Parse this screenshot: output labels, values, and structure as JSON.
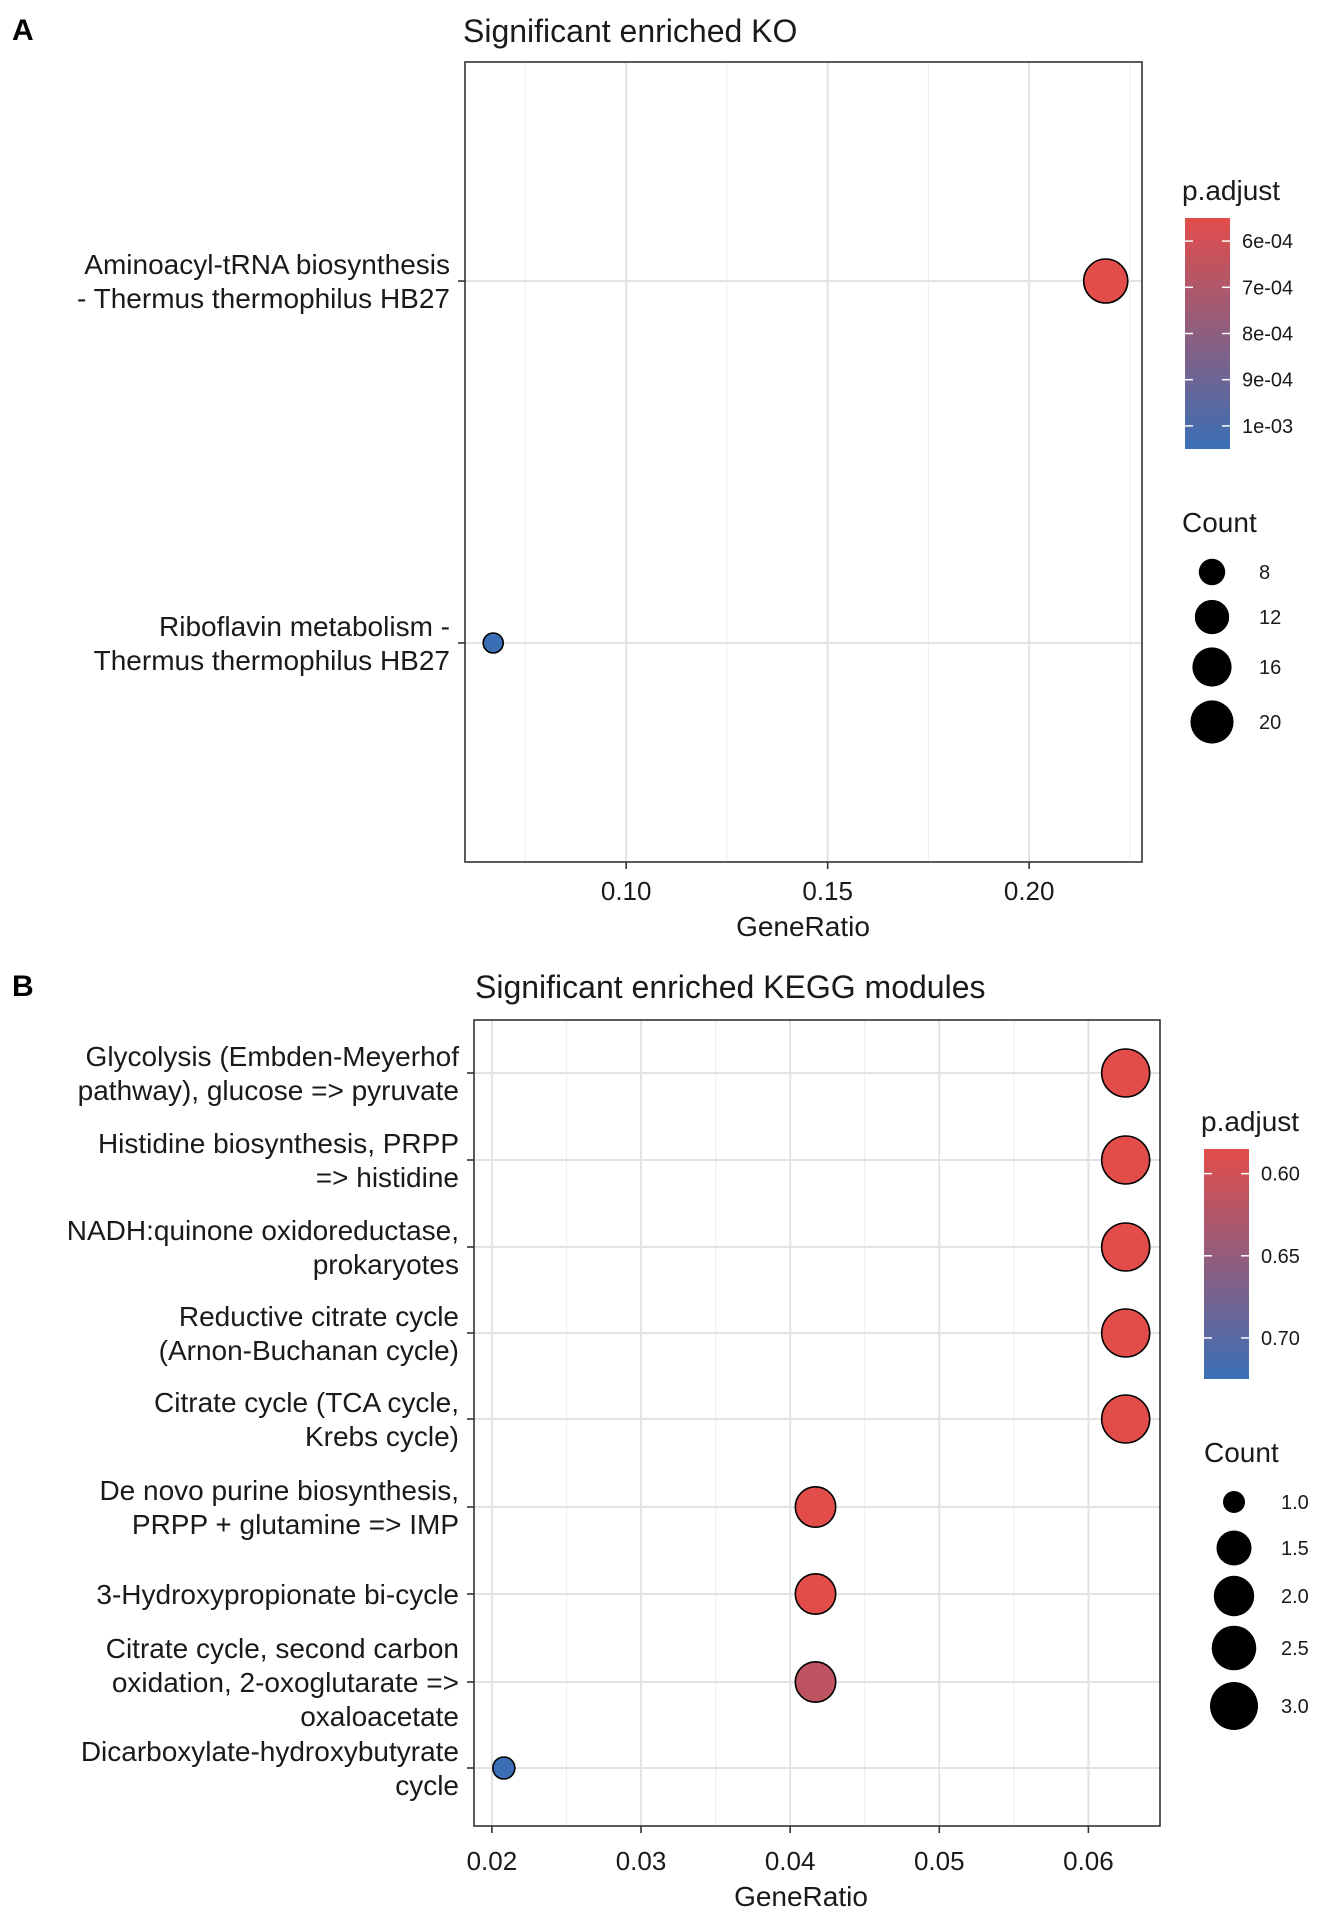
{
  "panels": [
    {
      "letter": "A",
      "chart_data": {
        "type": "scatter",
        "title": "Significant enriched KO",
        "xlabel": "GeneRatio",
        "ylabel": "",
        "xlim": [
          0.06,
          0.228
        ],
        "xticks": [
          0.1,
          0.15,
          0.2
        ],
        "xtick_labels": [
          "0.10",
          "0.15",
          "0.20"
        ],
        "grid": true,
        "categories": [
          [
            "Aminoacyl-tRNA biosynthesis",
            "- Thermus thermophilus HB27"
          ],
          [
            "Riboflavin metabolism -",
            "Thermus thermophilus HB27"
          ]
        ],
        "points": [
          {
            "category": 0,
            "x": 0.219,
            "count": 21,
            "p_adjust": 0.00055
          },
          {
            "category": 1,
            "x": 0.067,
            "count": 7,
            "p_adjust": 0.00105
          }
        ],
        "color_legend": {
          "title": "p.adjust",
          "low_color": "#e24d4a",
          "high_color": "#3a6fb5",
          "range": [
            0.00055,
            0.00105
          ],
          "ticks": [
            0.0006,
            0.0007,
            0.0008,
            0.0009,
            0.001
          ],
          "tick_labels": [
            "6e-04",
            "7e-04",
            "8e-04",
            "9e-04",
            "1e-03"
          ]
        },
        "size_legend": {
          "title": "Count",
          "values": [
            8,
            12,
            16,
            20
          ],
          "labels": [
            "8",
            "12",
            "16",
            "20"
          ],
          "min": 7,
          "max": 21
        }
      }
    },
    {
      "letter": "B",
      "chart_data": {
        "type": "scatter",
        "title": "Significant enriched KEGG modules",
        "xlabel": "GeneRatio",
        "ylabel": "",
        "xlim": [
          0.0188,
          0.0648
        ],
        "xticks": [
          0.02,
          0.03,
          0.04,
          0.05,
          0.06
        ],
        "xtick_labels": [
          "0.02",
          "0.03",
          "0.04",
          "0.05",
          "0.06"
        ],
        "grid": true,
        "categories": [
          [
            "Glycolysis (Embden-Meyerhof",
            "pathway), glucose => pyruvate"
          ],
          [
            "Histidine biosynthesis, PRPP",
            "=> histidine"
          ],
          [
            "NADH:quinone oxidoreductase,",
            "prokaryotes"
          ],
          [
            "Reductive citrate cycle",
            "(Arnon-Buchanan cycle)"
          ],
          [
            "Citrate cycle (TCA cycle,",
            "Krebs cycle)"
          ],
          [
            "De novo purine biosynthesis,",
            "PRPP + glutamine => IMP"
          ],
          [
            "3-Hydroxypropionate bi-cycle"
          ],
          [
            "Citrate cycle, second carbon",
            "oxidation, 2-oxoglutarate =>",
            "oxaloacetate"
          ],
          [
            "Dicarboxylate-hydroxybutyrate",
            "cycle"
          ]
        ],
        "points": [
          {
            "category": 0,
            "x": 0.0625,
            "count": 3,
            "p_adjust": 0.585
          },
          {
            "category": 1,
            "x": 0.0625,
            "count": 3,
            "p_adjust": 0.585
          },
          {
            "category": 2,
            "x": 0.0625,
            "count": 3,
            "p_adjust": 0.585
          },
          {
            "category": 3,
            "x": 0.0625,
            "count": 3,
            "p_adjust": 0.585
          },
          {
            "category": 4,
            "x": 0.0625,
            "count": 3,
            "p_adjust": 0.585
          },
          {
            "category": 5,
            "x": 0.0417,
            "count": 2,
            "p_adjust": 0.585
          },
          {
            "category": 6,
            "x": 0.0417,
            "count": 2,
            "p_adjust": 0.585
          },
          {
            "category": 7,
            "x": 0.0417,
            "count": 2,
            "p_adjust": 0.615
          },
          {
            "category": 8,
            "x": 0.0208,
            "count": 1,
            "p_adjust": 0.725
          }
        ],
        "color_legend": {
          "title": "p.adjust",
          "low_color": "#e24d4a",
          "high_color": "#3a6fb5",
          "range": [
            0.585,
            0.725
          ],
          "ticks": [
            0.6,
            0.65,
            0.7
          ],
          "tick_labels": [
            "0.60",
            "0.65",
            "0.70"
          ]
        },
        "size_legend": {
          "title": "Count",
          "values": [
            1.0,
            1.5,
            2.0,
            2.5,
            3.0
          ],
          "labels": [
            "1.0",
            "1.5",
            "2.0",
            "2.5",
            "3.0"
          ],
          "min": 1,
          "max": 3
        }
      }
    }
  ]
}
